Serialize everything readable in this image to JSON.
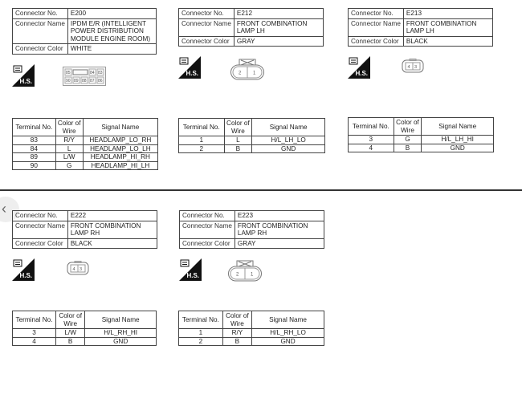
{
  "labels": {
    "connector_no": "Connector No.",
    "connector_name": "Connector Name",
    "connector_color": "Connector Color",
    "terminal_no": "Terminal No.",
    "color_of_wire": "Color of Wire",
    "signal_name": "Signal Name",
    "hs_icon_text": "H.S."
  },
  "connectors": [
    {
      "no": "E200",
      "name": "IPDM E/R (INTELLIGENT POWER DISTRIBUTION MODULE ENGINE ROOM)",
      "color": "WHITE",
      "diagram": "ipdm-connector-icon",
      "pins_top": [
        "85",
        "84",
        "83"
      ],
      "pins_bottom": [
        "90",
        "89",
        "88",
        "87",
        "86"
      ],
      "terminals": [
        {
          "no": "83",
          "wire": "R/Y",
          "signal": "HEADLAMP_LO_RH"
        },
        {
          "no": "84",
          "wire": "L",
          "signal": "HEADLAMP_LO_LH"
        },
        {
          "no": "89",
          "wire": "L/W",
          "signal": "HEADLAMP_HI_RH"
        },
        {
          "no": "90",
          "wire": "G",
          "signal": "HEADLAMP_HI_LH"
        }
      ]
    },
    {
      "no": "E212",
      "name": "FRONT COMBINATION LAMP LH",
      "color": "GRAY",
      "diagram": "two-pin-connector-icon",
      "pins": [
        "2",
        "1"
      ],
      "terminals": [
        {
          "no": "1",
          "wire": "L",
          "signal": "H/L_LH_LO"
        },
        {
          "no": "2",
          "wire": "B",
          "signal": "GND"
        }
      ]
    },
    {
      "no": "E213",
      "name": "FRONT COMBINATION LAMP LH",
      "color": "BLACK",
      "diagram": "small-two-pin-connector-icon",
      "pins": [
        "4",
        "3"
      ],
      "terminals": [
        {
          "no": "3",
          "wire": "G",
          "signal": "H/L_LH_HI"
        },
        {
          "no": "4",
          "wire": "B",
          "signal": "GND"
        }
      ]
    },
    {
      "no": "E222",
      "name": "FRONT COMBINATION LAMP RH",
      "color": "BLACK",
      "diagram": "small-two-pin-connector-icon",
      "pins": [
        "4",
        "3"
      ],
      "terminals": [
        {
          "no": "3",
          "wire": "L/W",
          "signal": "H/L_RH_HI"
        },
        {
          "no": "4",
          "wire": "B",
          "signal": "GND"
        }
      ]
    },
    {
      "no": "E223",
      "name": "FRONT COMBINATION LAMP RH",
      "color": "GRAY",
      "diagram": "two-pin-connector-icon",
      "pins": [
        "2",
        "1"
      ],
      "terminals": [
        {
          "no": "1",
          "wire": "R/Y",
          "signal": "H/L_RH_LO"
        },
        {
          "no": "2",
          "wire": "B",
          "signal": "GND"
        }
      ]
    }
  ],
  "nav": {
    "back_icon": "chevron-left-icon"
  }
}
